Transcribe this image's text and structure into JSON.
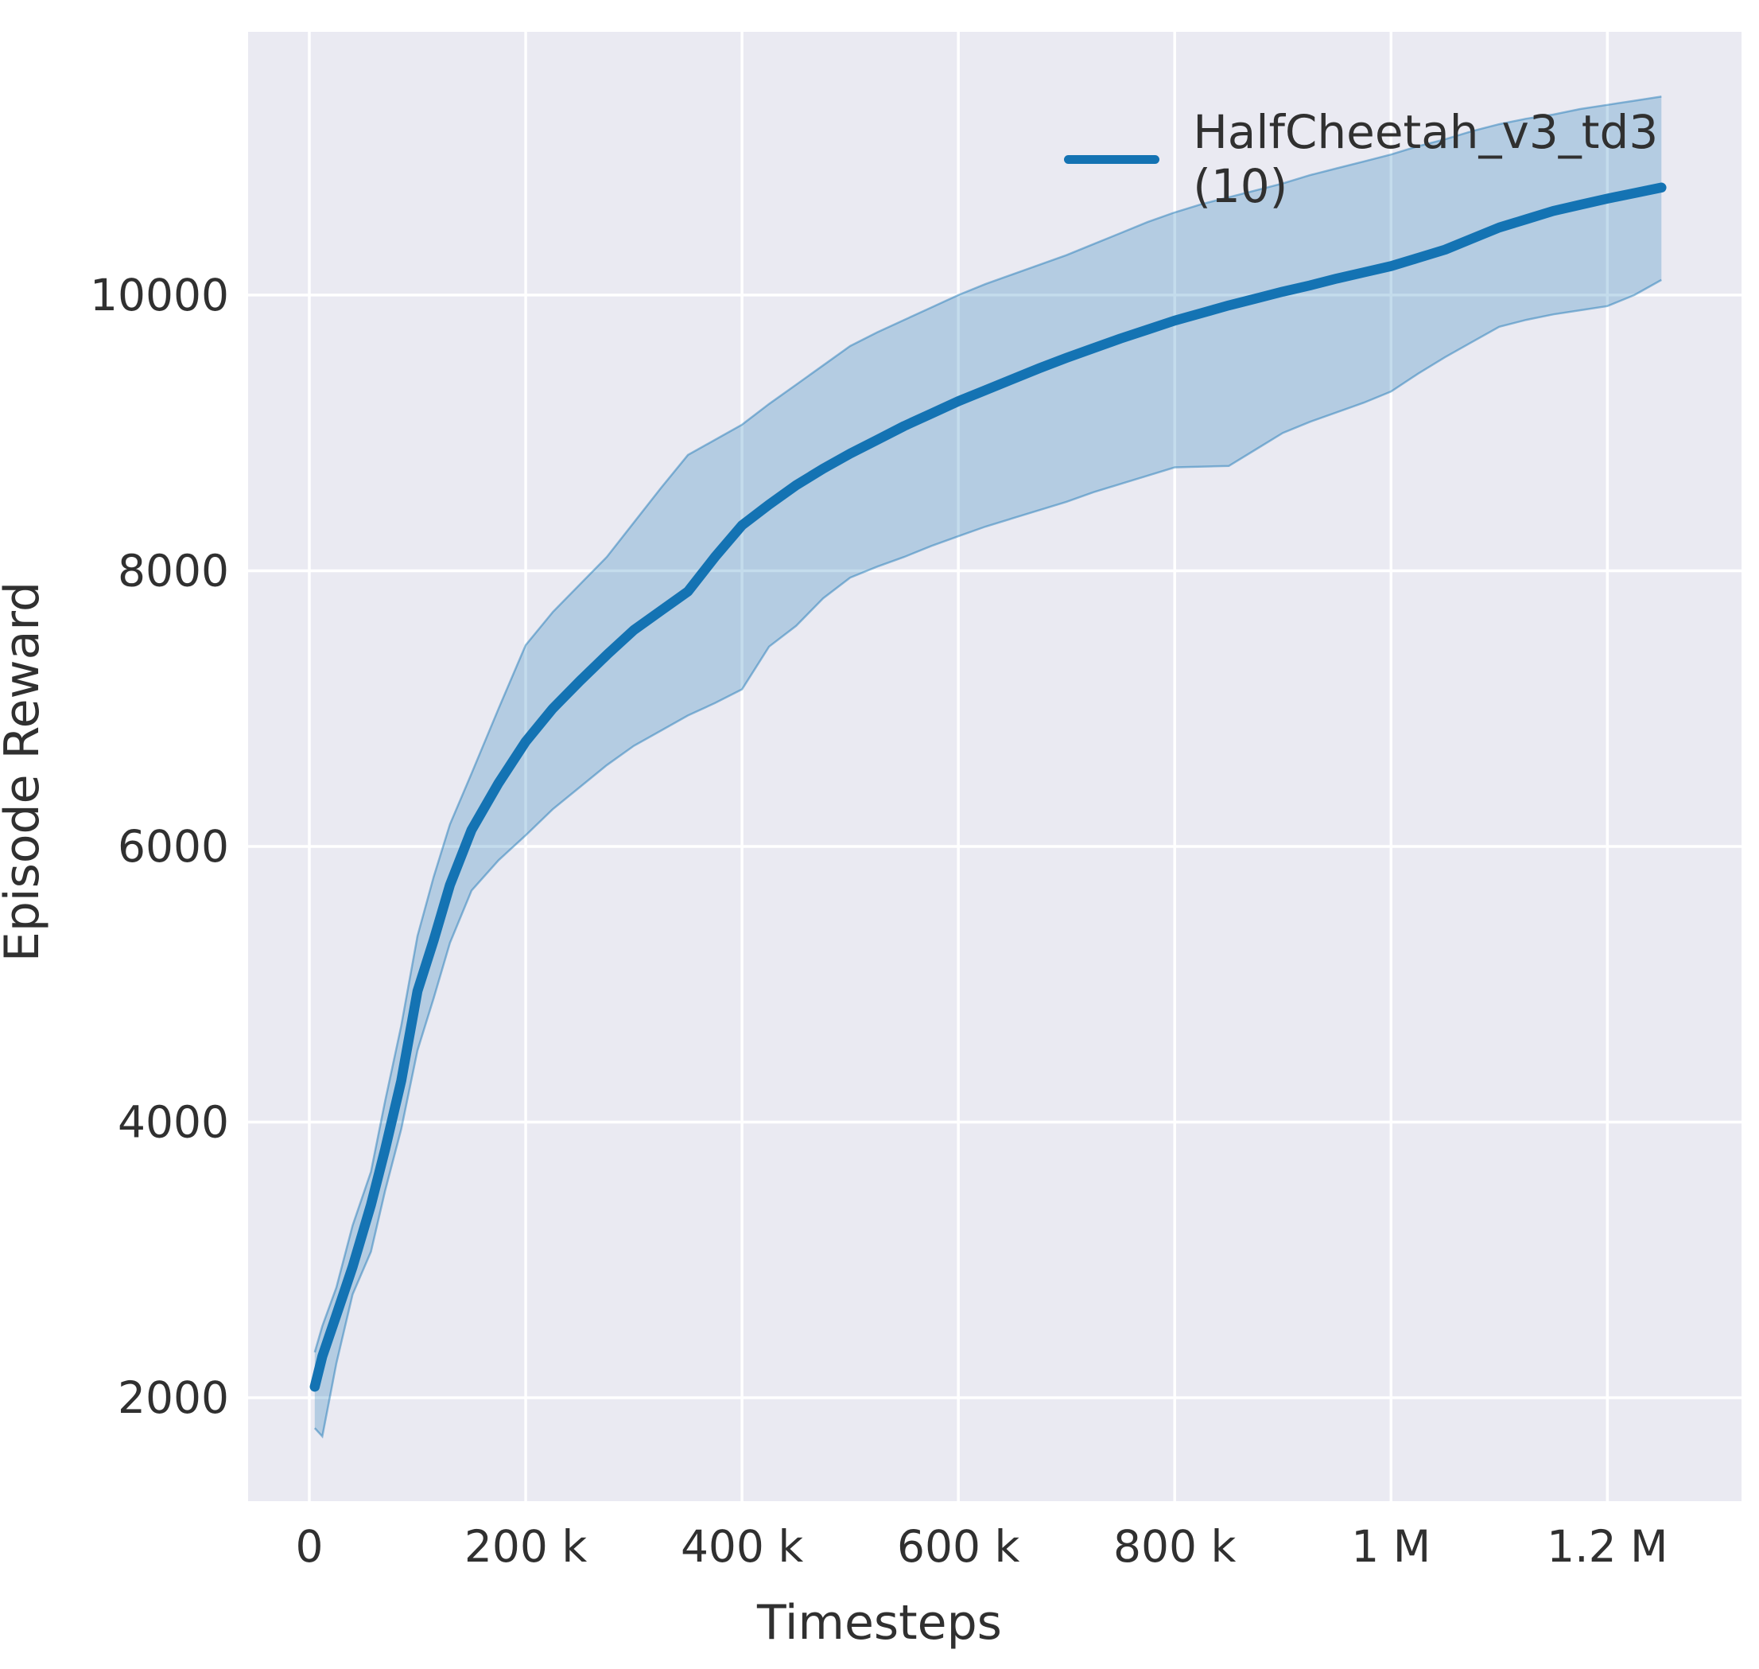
{
  "figure": {
    "background": "#ffffff",
    "panel_background": "#eaeaf2",
    "grid_color": "#ffffff",
    "text_color": "#303030"
  },
  "chart_data": {
    "type": "line",
    "title": "",
    "xlabel": "Timesteps",
    "ylabel": "Episode Reward",
    "grid": true,
    "legend_position": "upper right",
    "xlim": [
      -56600,
      1324000
    ],
    "ylim": [
      1250,
      11910
    ],
    "x_ticks": [
      {
        "value": 0,
        "label": "0"
      },
      {
        "value": 200000,
        "label": "200 k"
      },
      {
        "value": 400000,
        "label": "400 k"
      },
      {
        "value": 600000,
        "label": "600 k"
      },
      {
        "value": 800000,
        "label": "800 k"
      },
      {
        "value": 1000000,
        "label": "1 M"
      },
      {
        "value": 1200000,
        "label": "1.2 M"
      }
    ],
    "y_ticks": [
      {
        "value": 2000,
        "label": "2000"
      },
      {
        "value": 4000,
        "label": "4000"
      },
      {
        "value": 6000,
        "label": "6000"
      },
      {
        "value": 8000,
        "label": "8000"
      },
      {
        "value": 10000,
        "label": "10000"
      }
    ],
    "series": [
      {
        "name": "HalfCheetah_v3_td3 (10)",
        "color": "#1473b3",
        "band_fill_alpha": 0.25,
        "band_edge_alpha": 0.45,
        "x": [
          5000,
          12000,
          25000,
          40000,
          57000,
          70000,
          85000,
          100000,
          115000,
          130000,
          150000,
          175000,
          200000,
          225000,
          250000,
          275000,
          300000,
          325000,
          350000,
          375000,
          400000,
          425000,
          450000,
          475000,
          500000,
          525000,
          550000,
          575000,
          600000,
          625000,
          650000,
          675000,
          700000,
          725000,
          750000,
          775000,
          800000,
          825000,
          850000,
          875000,
          900000,
          925000,
          950000,
          975000,
          1000000,
          1025000,
          1050000,
          1075000,
          1100000,
          1125000,
          1150000,
          1175000,
          1200000,
          1225000,
          1250000
        ],
        "mean": [
          2080,
          2300,
          2600,
          2950,
          3400,
          3800,
          4300,
          4950,
          5320,
          5720,
          6120,
          6460,
          6760,
          7000,
          7200,
          7390,
          7570,
          7710,
          7850,
          8100,
          8330,
          8480,
          8620,
          8740,
          8850,
          8950,
          9050,
          9140,
          9230,
          9310,
          9390,
          9470,
          9545,
          9615,
          9685,
          9750,
          9815,
          9870,
          9925,
          9975,
          10025,
          10070,
          10120,
          10165,
          10210,
          10270,
          10330,
          10410,
          10490,
          10550,
          10610,
          10655,
          10700,
          10740,
          10780
        ],
        "upper": [
          2330,
          2520,
          2800,
          3250,
          3640,
          4150,
          4700,
          5350,
          5780,
          6160,
          6530,
          7000,
          7460,
          7700,
          7900,
          8100,
          8350,
          8600,
          8840,
          8950,
          9060,
          9210,
          9350,
          9490,
          9630,
          9730,
          9820,
          9910,
          10000,
          10080,
          10150,
          10220,
          10290,
          10370,
          10450,
          10530,
          10600,
          10660,
          10710,
          10760,
          10810,
          10870,
          10920,
          10970,
          11020,
          11080,
          11130,
          11190,
          11240,
          11280,
          11310,
          11350,
          11380,
          11410,
          11440
        ],
        "lower": [
          1780,
          1720,
          2250,
          2750,
          3060,
          3500,
          3950,
          4520,
          4900,
          5300,
          5680,
          5900,
          6080,
          6270,
          6430,
          6590,
          6730,
          6840,
          6950,
          7040,
          7140,
          7450,
          7600,
          7800,
          7950,
          8030,
          8100,
          8180,
          8250,
          8320,
          8380,
          8440,
          8500,
          8570,
          8630,
          8690,
          8750,
          8755,
          8760,
          8880,
          9000,
          9080,
          9150,
          9220,
          9300,
          9430,
          9550,
          9660,
          9770,
          9820,
          9860,
          9890,
          9920,
          10000,
          10110
        ]
      }
    ]
  }
}
